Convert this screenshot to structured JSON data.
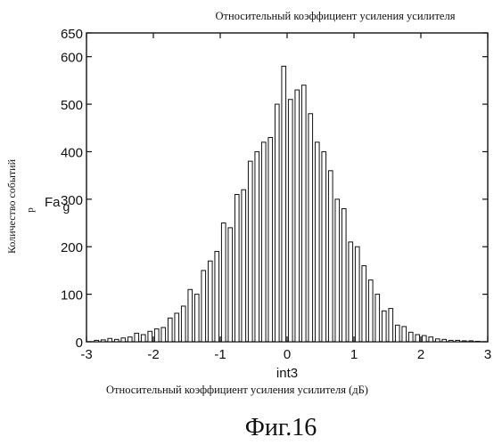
{
  "chart_data": {
    "type": "bar",
    "title": "Относительный коэффициент усиления усилителя",
    "xlabel": "int3",
    "xlabel_caption": "Относительный коэффициент усиления усилителя (дБ)",
    "ylabel": "Количество событий",
    "y_symbol_main": "Fa",
    "y_symbol_sub": "g",
    "y_symbol_small": "р",
    "figure_caption": "Фиг.16",
    "xlim": [
      -3,
      3
    ],
    "ylim": [
      0,
      650
    ],
    "x_ticks": [
      "-3",
      "-2",
      "-1",
      "0",
      "1",
      "2",
      "3"
    ],
    "y_ticks": [
      "0",
      "100",
      "200",
      "300",
      "400",
      "500",
      "600",
      "650"
    ],
    "grid": false,
    "bar_fill": "#ffffff",
    "bar_stroke": "#111111",
    "x": [
      -2.85,
      -2.75,
      -2.65,
      -2.55,
      -2.45,
      -2.35,
      -2.25,
      -2.15,
      -2.05,
      -1.95,
      -1.85,
      -1.75,
      -1.65,
      -1.55,
      -1.45,
      -1.35,
      -1.25,
      -1.15,
      -1.05,
      -0.95,
      -0.85,
      -0.75,
      -0.65,
      -0.55,
      -0.45,
      -0.35,
      -0.25,
      -0.15,
      -0.05,
      0.05,
      0.15,
      0.25,
      0.35,
      0.45,
      0.55,
      0.65,
      0.75,
      0.85,
      0.95,
      1.05,
      1.15,
      1.25,
      1.35,
      1.45,
      1.55,
      1.65,
      1.75,
      1.85,
      1.95,
      2.05,
      2.15,
      2.25,
      2.35,
      2.45,
      2.55,
      2.65,
      2.75,
      2.85
    ],
    "values": [
      3,
      4,
      7,
      5,
      8,
      10,
      18,
      15,
      22,
      27,
      30,
      50,
      60,
      75,
      110,
      100,
      150,
      170,
      190,
      250,
      240,
      310,
      320,
      380,
      400,
      420,
      430,
      500,
      580,
      510,
      530,
      540,
      480,
      420,
      400,
      360,
      300,
      280,
      210,
      200,
      160,
      130,
      100,
      65,
      70,
      35,
      32,
      20,
      15,
      13,
      10,
      6,
      5,
      3,
      3,
      2,
      2,
      1
    ]
  }
}
